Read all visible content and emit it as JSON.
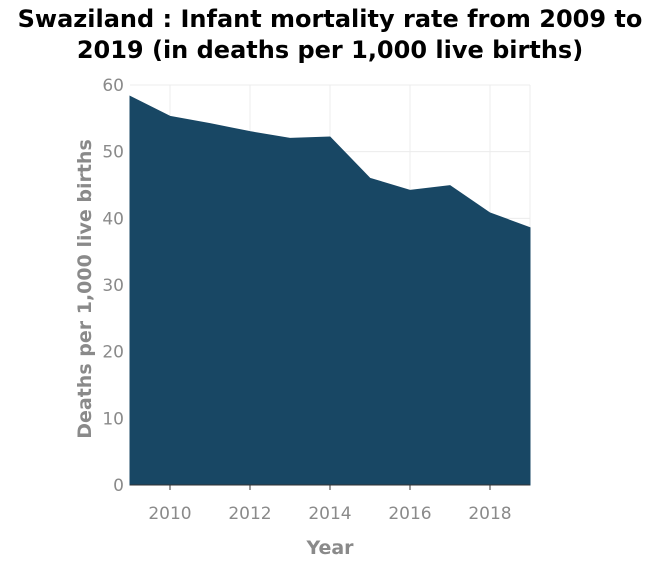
{
  "chart_data": {
    "type": "area",
    "title": "Swaziland : Infant mortality rate from 2009 to 2019 (in deaths per 1,000 live births)",
    "xlabel": "Year",
    "ylabel": "Deaths per 1,000 live births",
    "x": [
      2009,
      2010,
      2011,
      2012,
      2013,
      2014,
      2015,
      2016,
      2017,
      2018,
      2019
    ],
    "series": [
      {
        "values": [
          58.3,
          55.3,
          54.2,
          53.0,
          52.0,
          52.2,
          46.0,
          44.2,
          44.9,
          40.8,
          38.6
        ]
      }
    ],
    "xlim": [
      2009,
      2019
    ],
    "ylim": [
      0,
      60
    ],
    "xticks": [
      "2010",
      "2012",
      "2014",
      "2016",
      "2018"
    ],
    "yticks": [
      "0",
      "10",
      "20",
      "30",
      "40",
      "50",
      "60"
    ],
    "grid": true,
    "colors": {
      "fill": "#184764",
      "text_muted": "#8a8a8a",
      "grid": "#ececec"
    }
  }
}
